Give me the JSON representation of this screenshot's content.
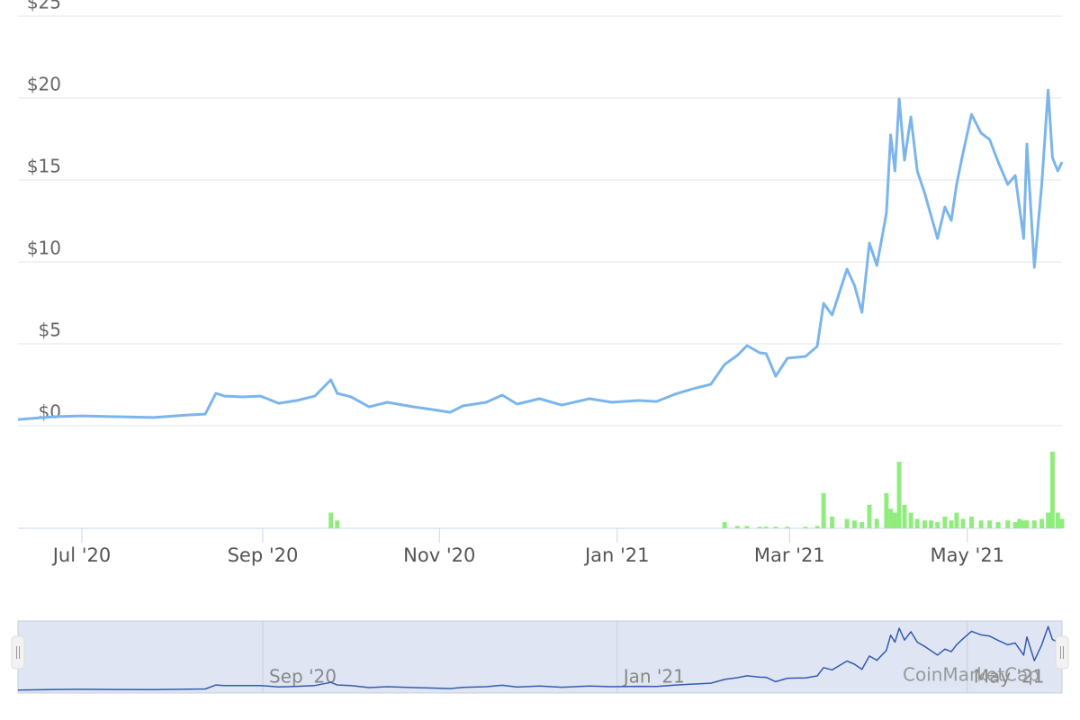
{
  "chart_data": {
    "type": "line",
    "x": [
      2020.437,
      2020.471,
      2020.496,
      2020.53,
      2020.564,
      2020.598,
      2020.613,
      2020.623,
      2020.631,
      2020.648,
      2020.665,
      2020.682,
      2020.699,
      2020.716,
      2020.731,
      2020.737,
      2020.75,
      2020.767,
      2020.784,
      2020.809,
      2020.826,
      2020.843,
      2020.855,
      2020.877,
      2020.892,
      2020.906,
      2020.927,
      2020.948,
      2020.974,
      2020.995,
      2021.02,
      2021.037,
      2021.054,
      2021.071,
      2021.088,
      2021.101,
      2021.113,
      2021.122,
      2021.134,
      2021.14,
      2021.149,
      2021.16,
      2021.177,
      2021.188,
      2021.194,
      2021.202,
      2021.216,
      2021.223,
      2021.23,
      2021.237,
      2021.244,
      2021.253,
      2021.257,
      2021.261,
      2021.265,
      2021.27,
      2021.276,
      2021.282,
      2021.289,
      2021.295,
      2021.301,
      2021.308,
      2021.314,
      2021.319,
      2021.325,
      2021.333,
      2021.342,
      2021.35,
      2021.358,
      2021.367,
      2021.374,
      2021.378,
      2021.382,
      2021.385,
      2021.392,
      2021.399,
      2021.405,
      2021.409,
      2021.414,
      2021.418
    ],
    "series": [
      {
        "color": "#7cb5ec",
        "values": [
          0.38,
          0.55,
          0.6,
          0.55,
          0.5,
          0.66,
          0.71,
          1.98,
          1.81,
          1.76,
          1.81,
          1.37,
          1.54,
          1.81,
          2.8,
          1.98,
          1.76,
          1.15,
          1.43,
          1.15,
          0.99,
          0.82,
          1.21,
          1.43,
          1.87,
          1.32,
          1.65,
          1.26,
          1.65,
          1.43,
          1.54,
          1.48,
          1.92,
          2.25,
          2.53,
          3.74,
          4.29,
          4.89,
          4.45,
          4.4,
          3.02,
          4.12,
          4.23,
          4.84,
          7.47,
          6.76,
          9.56,
          8.57,
          6.92,
          11.15,
          9.78,
          12.97,
          17.75,
          15.55,
          19.95,
          16.21,
          18.85,
          15.55,
          14.18,
          12.8,
          11.43,
          13.35,
          12.53,
          14.73,
          16.65,
          19.01,
          17.86,
          17.47,
          16.1,
          14.73,
          15.27,
          13.35,
          11.43,
          17.2,
          9.67,
          14.73,
          20.49,
          16.37,
          15.55,
          16.1
        ]
      },
      {
        "type": "bar",
        "axis": "y2",
        "color": "#90ed7d",
        "values": [
          0,
          0,
          0,
          0,
          0,
          0,
          0,
          0,
          0,
          0,
          0,
          0,
          0,
          0,
          20,
          10,
          0,
          0,
          0,
          0,
          0,
          0,
          0,
          0,
          0,
          0,
          0,
          0,
          0,
          0,
          0,
          0,
          0,
          0,
          0,
          8,
          3,
          3,
          2,
          2,
          2,
          2,
          2,
          3,
          45,
          15,
          12,
          10,
          8,
          30,
          12,
          45,
          25,
          20,
          85,
          30,
          20,
          12,
          10,
          10,
          8,
          15,
          10,
          20,
          12,
          15,
          10,
          10,
          8,
          10,
          8,
          12,
          10,
          10,
          10,
          12,
          20,
          98,
          20,
          12
        ]
      }
    ],
    "xlim": [
      2020.437,
      2021.418
    ],
    "xticks": [
      {
        "value": 2020.497,
        "label": "Jul '20"
      },
      {
        "value": 2020.667,
        "label": "Sep '20"
      },
      {
        "value": 2020.833,
        "label": "Nov '20"
      },
      {
        "value": 2021.0,
        "label": "Jan '21"
      },
      {
        "value": 2021.162,
        "label": "Mar '21"
      },
      {
        "value": 2021.329,
        "label": "May '21"
      }
    ],
    "ylim": [
      0,
      25
    ],
    "yticks": [
      {
        "value": 0,
        "label": "$0"
      },
      {
        "value": 5,
        "label": "$5"
      },
      {
        "value": 10,
        "label": "$10"
      },
      {
        "value": 15,
        "label": "$15"
      },
      {
        "value": 20,
        "label": "$20"
      },
      {
        "value": 25,
        "label": "$25"
      }
    ],
    "y2lim": [
      0,
      100
    ],
    "grid": true,
    "watermark": "CoinMarketCap"
  }
}
